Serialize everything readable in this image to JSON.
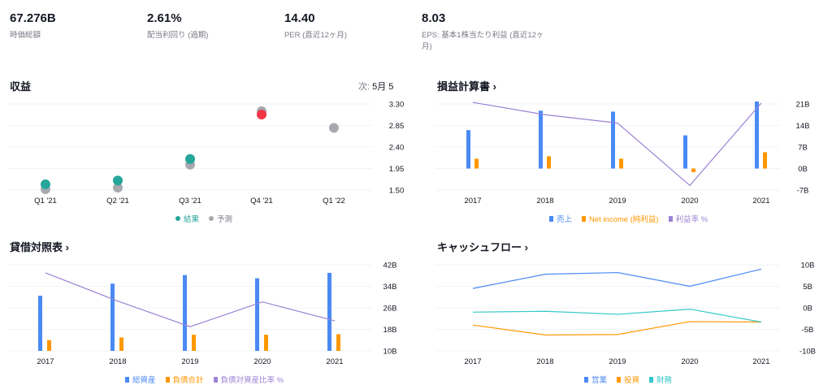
{
  "stats": [
    {
      "value": "67.276B",
      "label": "時価総額"
    },
    {
      "value": "2.61%",
      "label": "配当利回り (過期)"
    },
    {
      "value": "14.40",
      "label": "PER (直近12ヶ月)"
    },
    {
      "value": "8.03",
      "label": "EPS: 基本1株当たり利益 (直近12ヶ月)"
    }
  ],
  "panels": {
    "earnings": {
      "title": "収益",
      "next_label": "次:",
      "next_value": "5月 5"
    },
    "income": {
      "title": "損益計算書 ›"
    },
    "balance": {
      "title": "貸借対照表 ›"
    },
    "cashflow": {
      "title": "キャッシュフロー ›"
    }
  },
  "colors": {
    "actual": "#26a69a",
    "estimate": "#a7a9ae",
    "miss": "#f23645",
    "blue": "#4a8af4",
    "orange": "#ff9800",
    "purple": "#9c83d4",
    "teal": "#35c8c8"
  },
  "chart_data": [
    {
      "type": "scatter",
      "name": "earnings",
      "categories": [
        "Q1 '21",
        "Q2 '21",
        "Q3 '21",
        "Q4 '21",
        "Q1 '22"
      ],
      "series": [
        {
          "name": "結果",
          "values": [
            1.62,
            1.7,
            2.15,
            3.08,
            null
          ]
        },
        {
          "name": "予測",
          "values": [
            1.52,
            1.55,
            2.03,
            3.15,
            2.8
          ]
        }
      ],
      "yticks": [
        "3.30",
        "2.85",
        "2.40",
        "1.95",
        "1.50"
      ],
      "ylim": [
        1.5,
        3.3
      ],
      "legend": "bottom"
    },
    {
      "type": "bar",
      "name": "income",
      "categories": [
        "2017",
        "2018",
        "2019",
        "2020",
        "2021"
      ],
      "series": [
        {
          "name": "売上",
          "values": [
            12.5,
            18.8,
            18.5,
            10.8,
            21.8
          ]
        },
        {
          "name": "Net income (純利益)",
          "values": [
            3.2,
            4.0,
            3.2,
            -1.2,
            5.3
          ]
        },
        {
          "name": "利益率 %",
          "values": [
            21.5,
            17.5,
            14.8,
            -5.5,
            21.3
          ]
        }
      ],
      "yticks": [
        "21B",
        "14B",
        "7B",
        "0B",
        "-7B"
      ],
      "ylim": [
        -7,
        21
      ],
      "legend": "bottom"
    },
    {
      "type": "bar",
      "name": "balance",
      "categories": [
        "2017",
        "2018",
        "2019",
        "2020",
        "2021"
      ],
      "series": [
        {
          "name": "総資産",
          "values": [
            30.5,
            35.0,
            38.2,
            37.0,
            39.0
          ]
        },
        {
          "name": "負債合計",
          "values": [
            14.0,
            15.0,
            16.0,
            16.0,
            16.2
          ]
        },
        {
          "name": "負債対資産比率 %",
          "values": [
            39.0,
            28.5,
            19.0,
            28.2,
            21.2
          ]
        }
      ],
      "yticks": [
        "42B",
        "34B",
        "26B",
        "18B",
        "10B"
      ],
      "ylim": [
        10,
        42
      ],
      "legend": "bottom"
    },
    {
      "type": "line",
      "name": "cashflow",
      "categories": [
        "2017",
        "2018",
        "2019",
        "2020",
        "2021"
      ],
      "series": [
        {
          "name": "営業",
          "values": [
            4.5,
            7.8,
            8.2,
            5.0,
            9.0
          ]
        },
        {
          "name": "投資",
          "values": [
            -4.0,
            -6.3,
            -6.2,
            -3.2,
            -3.3
          ]
        },
        {
          "name": "財務",
          "values": [
            -1.0,
            -0.8,
            -1.5,
            -0.3,
            -3.3
          ]
        }
      ],
      "yticks": [
        "10B",
        "5B",
        "0B",
        "-5B",
        "-10B"
      ],
      "ylim": [
        -10,
        10
      ],
      "legend": "bottom"
    }
  ]
}
